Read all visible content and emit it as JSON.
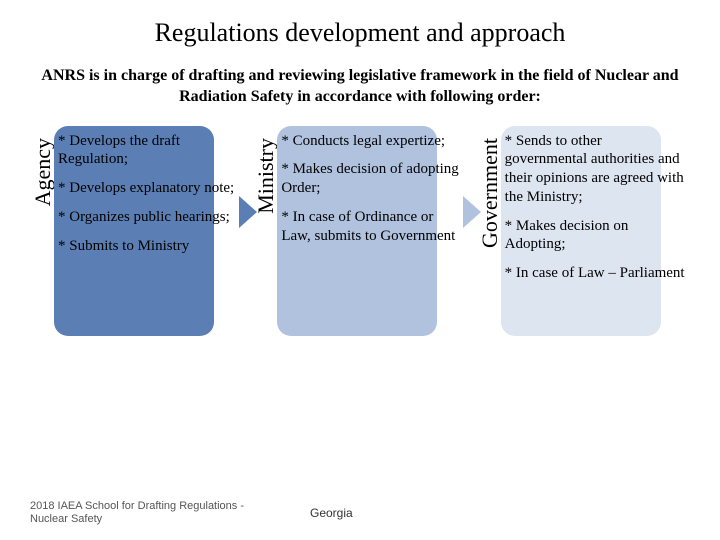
{
  "title": "Regulations development and approach",
  "subtitle": "ANRS is in charge of drafting and reviewing legislative framework in the field of Nuclear and Radiation Safety in accordance with following order:",
  "columns": [
    {
      "label": "Agency",
      "shape_color": "#5b7fb4",
      "arrow_color": "#5b7fb4",
      "items": [
        "* Develops the draft Regulation;",
        "* Develops explanatory note;",
        "* Organizes public hearings;",
        "* Submits to Ministry"
      ]
    },
    {
      "label": "Ministry",
      "shape_color": "#b0c2dd",
      "arrow_color": "#b0c2dd",
      "items": [
        "* Conducts legal expertize;",
        "* Makes decision of adopting Order;",
        "* In case of Ordinance or Law, submits to Government"
      ]
    },
    {
      "label": "Government",
      "shape_color": "#dde5f0",
      "arrow_color": "",
      "items": [
        "* Sends to other governmental authorities and their opinions are agreed with the Ministry;",
        "* Makes decision on Adopting;",
        "* In case of Law – Parliament"
      ]
    }
  ],
  "footer": {
    "left": "2018 IAEA School for Drafting Regulations - Nuclear Safety",
    "center": "Georgia"
  },
  "style": {
    "title_fontsize": 26,
    "subtitle_fontsize": 16,
    "vlabel_fontsize": 22,
    "item_fontsize": 15,
    "footer_fontsize": 11,
    "background": "#ffffff",
    "text_color": "#000000",
    "footer_color": "#555555",
    "shape_radius": 14,
    "shape_width": 160,
    "shape_height": 210
  }
}
